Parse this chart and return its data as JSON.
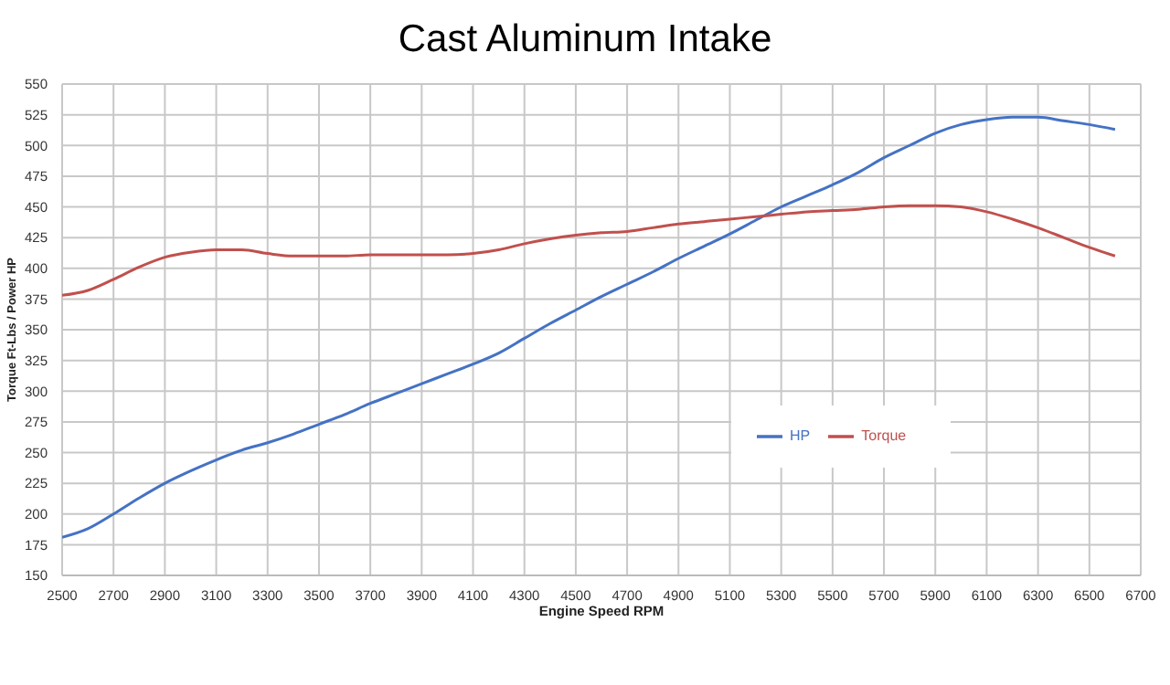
{
  "chart_data": {
    "type": "line",
    "title": "Cast Aluminum Intake",
    "xlabel": "Engine Speed RPM",
    "ylabel": "Torque Ft-Lbs / Power HP",
    "x": [
      2500,
      2600,
      2700,
      2800,
      2900,
      3000,
      3100,
      3200,
      3300,
      3400,
      3500,
      3600,
      3700,
      3800,
      3900,
      4000,
      4100,
      4200,
      4300,
      4400,
      4500,
      4600,
      4700,
      4800,
      4900,
      5000,
      5100,
      5200,
      5300,
      5400,
      5500,
      5600,
      5700,
      5800,
      5900,
      6000,
      6100,
      6200,
      6300,
      6400,
      6500,
      6600
    ],
    "series": [
      {
        "name": "HP",
        "color": "#4472c4",
        "values": [
          181,
          188,
          200,
          213,
          225,
          235,
          244,
          252,
          258,
          265,
          273,
          281,
          290,
          298,
          306,
          314,
          322,
          331,
          343,
          355,
          366,
          377,
          387,
          397,
          408,
          418,
          428,
          439,
          450,
          459,
          468,
          478,
          490,
          500,
          510,
          517,
          521,
          523,
          523,
          520,
          517,
          513
        ]
      },
      {
        "name": "Torque",
        "color": "#c0504d",
        "values": [
          378,
          382,
          391,
          401,
          409,
          413,
          415,
          415,
          412,
          410,
          410,
          410,
          411,
          411,
          411,
          411,
          412,
          415,
          420,
          424,
          427,
          429,
          430,
          433,
          436,
          438,
          440,
          442,
          444,
          446,
          447,
          448,
          450,
          451,
          451,
          450,
          446,
          440,
          433,
          425,
          417,
          410
        ]
      }
    ],
    "xlim": [
      2500,
      6700
    ],
    "xticks": [
      2500,
      2700,
      2900,
      3100,
      3300,
      3500,
      3700,
      3900,
      4100,
      4300,
      4500,
      4700,
      4900,
      5100,
      5300,
      5500,
      5700,
      5900,
      6100,
      6300,
      6500,
      6700
    ],
    "ylim": [
      150,
      550
    ],
    "yticks": [
      150,
      175,
      200,
      225,
      250,
      275,
      300,
      325,
      350,
      375,
      400,
      425,
      450,
      475,
      500,
      525,
      550
    ],
    "grid": true,
    "legend": "center",
    "marker": "none",
    "line_style": "solid"
  }
}
